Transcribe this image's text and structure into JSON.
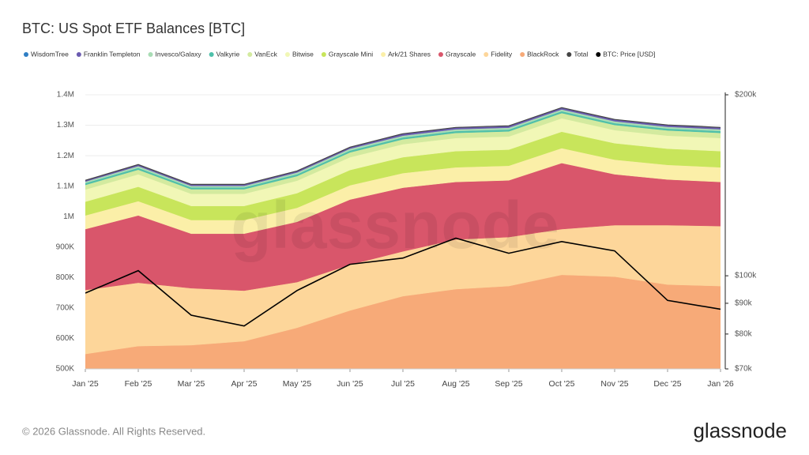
{
  "chart_data": {
    "type": "stacked-area",
    "title": "BTC: US Spot ETF Balances [BTC]",
    "watermark": "glassnode",
    "x": [
      "Jan '25",
      "Feb '25",
      "Mar '25",
      "Apr '25",
      "May '25",
      "Jun '25",
      "Jul '25",
      "Aug '25",
      "Sep '25",
      "Oct '25",
      "Nov '25",
      "Dec '25",
      "Jan '26"
    ],
    "series": [
      {
        "name": "WisdomTree",
        "color": "#2f7ec4",
        "values": [
          3,
          3,
          3,
          3,
          3,
          3,
          3,
          3,
          3,
          3,
          3,
          3,
          3
        ]
      },
      {
        "name": "Franklin Templeton",
        "color": "#6b5bb0",
        "values": [
          4000,
          5000,
          5000,
          5000,
          5000,
          5000,
          6000,
          6000,
          6000,
          6000,
          6000,
          6000,
          6000
        ]
      },
      {
        "name": "Invesco/Galaxy",
        "color": "#a8dcb4",
        "values": [
          5000,
          6000,
          5000,
          5000,
          6000,
          6000,
          6000,
          6000,
          6000,
          6000,
          6000,
          6000,
          6000
        ]
      },
      {
        "name": "Valkyrie",
        "color": "#4fc0aa",
        "values": [
          6000,
          6000,
          6000,
          6000,
          6000,
          6000,
          6000,
          6000,
          6000,
          6000,
          6000,
          6000,
          6000
        ]
      },
      {
        "name": "VanEck",
        "color": "#d3ea9f",
        "values": [
          15000,
          15000,
          15000,
          15000,
          15000,
          16000,
          16000,
          17000,
          17000,
          17000,
          17000,
          17000,
          17000
        ]
      },
      {
        "name": "Bitwise",
        "color": "#f1f7b6",
        "values": [
          40000,
          41000,
          40000,
          40000,
          41000,
          42000,
          43000,
          43000,
          43000,
          44000,
          43000,
          43000,
          43000
        ]
      },
      {
        "name": "Grayscale Mini",
        "color": "#c8e55b",
        "values": [
          45000,
          47000,
          46000,
          46000,
          48000,
          50000,
          52000,
          53000,
          53000,
          54000,
          54000,
          53000,
          53000
        ]
      },
      {
        "name": "Ark/21 Shares",
        "color": "#fbefa8",
        "values": [
          45000,
          47000,
          45000,
          45000,
          46000,
          47000,
          48000,
          48000,
          48000,
          49000,
          48000,
          48000,
          48000
        ]
      },
      {
        "name": "Grayscale",
        "color": "#d9566b",
        "values": [
          200000,
          221000,
          179000,
          187000,
          198000,
          214000,
          209000,
          189000,
          186000,
          217000,
          167000,
          150000,
          145000
        ]
      },
      {
        "name": "Fidelity",
        "color": "#fdd69a",
        "values": [
          210000,
          208000,
          187000,
          166000,
          150000,
          150000,
          147000,
          163000,
          161000,
          150000,
          169000,
          195000,
          197000
        ]
      },
      {
        "name": "BlackRock",
        "color": "#f7aa78",
        "values": [
          549000,
          575000,
          578000,
          591000,
          635000,
          692000,
          739000,
          762000,
          772000,
          809000,
          803000,
          777000,
          772000
        ]
      }
    ],
    "total": {
      "name": "Total",
      "color": "#444444",
      "values": [
        1119003,
        1171003,
        1106003,
        1106003,
        1150003,
        1228003,
        1272003,
        1293003,
        1298003,
        1358003,
        1319003,
        1301003,
        1293003
      ]
    },
    "price": {
      "name": "BTC: Price [USD]",
      "color": "#000000",
      "axis": "y2",
      "values": [
        93600,
        102000,
        86000,
        82500,
        94500,
        104500,
        107000,
        115500,
        109000,
        114000,
        110000,
        91000,
        88000
      ]
    },
    "ylim": [
      500000,
      1400000
    ],
    "yticks": [
      {
        "value": 500000,
        "label": "500K"
      },
      {
        "value": 600000,
        "label": "600K"
      },
      {
        "value": 700000,
        "label": "700K"
      },
      {
        "value": 800000,
        "label": "800K"
      },
      {
        "value": 900000,
        "label": "900K"
      },
      {
        "value": 1000000,
        "label": "1M"
      },
      {
        "value": 1100000,
        "label": "1.1M"
      },
      {
        "value": 1200000,
        "label": "1.2M"
      },
      {
        "value": 1300000,
        "label": "1.3M"
      },
      {
        "value": 1400000,
        "label": "1.4M"
      }
    ],
    "y2lim": [
      70000,
      200000
    ],
    "y2scale": "log",
    "y2ticks": [
      {
        "value": 70000,
        "label": "$70k"
      },
      {
        "value": 80000,
        "label": "$80k"
      },
      {
        "value": 90000,
        "label": "$90k"
      },
      {
        "value": 100000,
        "label": "$100k"
      },
      {
        "value": 200000,
        "label": "$200k"
      }
    ],
    "grid": true,
    "legend": "top"
  },
  "footer": {
    "copyright": "© 2026 Glassnode. All Rights Reserved.",
    "logo": "glassnode"
  }
}
